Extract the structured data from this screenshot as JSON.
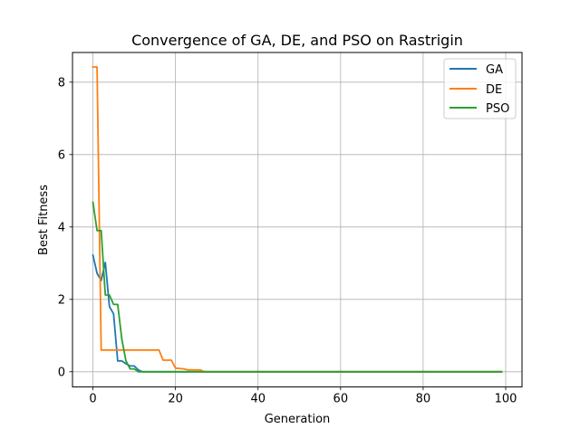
{
  "chart_data": {
    "type": "line",
    "title": "Convergence of GA, DE, and PSO on Rastrigin",
    "xlabel": "Generation",
    "ylabel": "Best Fitness",
    "xlim": [
      -4.95,
      103.95
    ],
    "ylim": [
      -0.42,
      8.82
    ],
    "xticks": [
      0,
      20,
      40,
      60,
      80,
      100
    ],
    "yticks": [
      0,
      2,
      4,
      6,
      8
    ],
    "xtick_labels": [
      "0",
      "20",
      "40",
      "60",
      "80",
      "100"
    ],
    "ytick_labels": [
      "0",
      "2",
      "4",
      "6",
      "8"
    ],
    "grid": true,
    "legend_position": "top-right",
    "series": [
      {
        "name": "GA",
        "color": "#1f77b4",
        "points": [
          [
            0,
            3.22
          ],
          [
            1,
            2.72
          ],
          [
            2,
            2.52
          ],
          [
            3,
            3.02
          ],
          [
            4,
            1.8
          ],
          [
            5,
            1.6
          ],
          [
            6,
            0.3
          ],
          [
            7,
            0.3
          ],
          [
            8,
            0.22
          ],
          [
            9,
            0.16
          ],
          [
            10,
            0.16
          ],
          [
            11,
            0.05
          ],
          [
            12,
            0.0
          ],
          [
            99,
            0.0
          ]
        ]
      },
      {
        "name": "DE",
        "color": "#ff7f0e",
        "points": [
          [
            0,
            8.42
          ],
          [
            1,
            8.42
          ],
          [
            2,
            0.6
          ],
          [
            16,
            0.6
          ],
          [
            17,
            0.32
          ],
          [
            19,
            0.32
          ],
          [
            20,
            0.1
          ],
          [
            22,
            0.08
          ],
          [
            23,
            0.05
          ],
          [
            26,
            0.05
          ],
          [
            27,
            0.0
          ],
          [
            99,
            0.0
          ]
        ]
      },
      {
        "name": "PSO",
        "color": "#2ca02c",
        "points": [
          [
            0,
            4.68
          ],
          [
            1,
            3.9
          ],
          [
            2,
            3.9
          ],
          [
            3,
            2.12
          ],
          [
            4,
            2.12
          ],
          [
            5,
            1.86
          ],
          [
            6,
            1.86
          ],
          [
            7,
            0.9
          ],
          [
            8,
            0.3
          ],
          [
            9,
            0.08
          ],
          [
            10,
            0.08
          ],
          [
            11,
            0.0
          ],
          [
            99,
            0.0
          ]
        ]
      }
    ]
  }
}
